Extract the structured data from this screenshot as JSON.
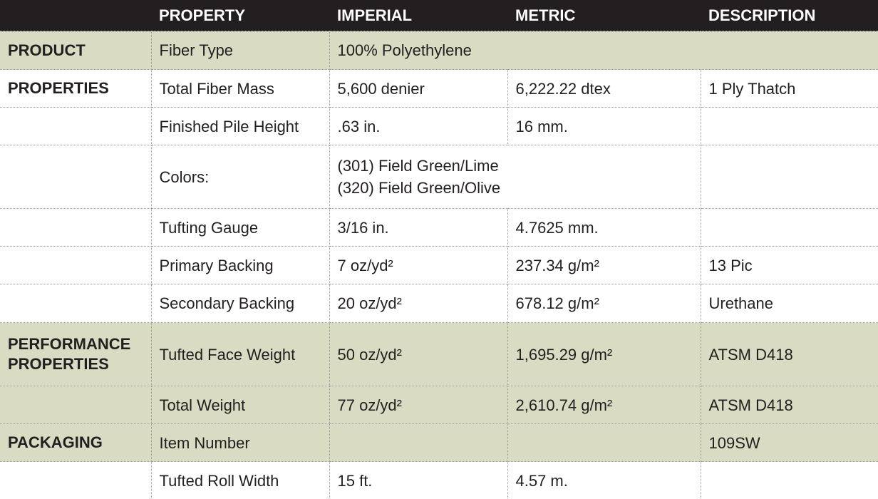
{
  "table": {
    "header": [
      "PROPERTY",
      "IMPERIAL",
      "METRIC",
      "DESCRIPTION"
    ],
    "rows": [
      {
        "section": "PRODUCT",
        "property": "Fiber Type",
        "imperial": "100% Polyethylene"
      },
      {
        "section": "PROPERTIES",
        "property": "Total Fiber Mass",
        "imperial": "5,600 denier",
        "metric": "6,222.22 dtex",
        "description": "1 Ply Thatch"
      },
      {
        "property": "Finished Pile Height",
        "imperial": ".63 in.",
        "metric": "16 mm."
      },
      {
        "property": "Colors:",
        "imperial": [
          "(301) Field Green/Lime",
          "(320) Field Green/Olive"
        ]
      },
      {
        "property": "Tufting Gauge",
        "imperial": "3/16 in.",
        "metric": "4.7625 mm."
      },
      {
        "property": "Primary Backing",
        "imperial": "7 oz/yd²",
        "metric": "237.34 g/m²",
        "description": "13 Pic"
      },
      {
        "property": "Secondary Backing",
        "imperial": "20 oz/yd²",
        "metric": "678.12 g/m²",
        "description": "Urethane"
      },
      {
        "section": "PERFORMANCE PROPERTIES",
        "property": "Tufted Face Weight",
        "imperial": "50 oz/yd²",
        "metric": "1,695.29 g/m²",
        "description": "ATSM D418"
      },
      {
        "property": "Total Weight",
        "imperial": "77 oz/yd²",
        "metric": "2,610.74 g/m²",
        "description": "ATSM D418"
      },
      {
        "section": "PACKAGING",
        "property": "Item Number",
        "description": "109SW"
      },
      {
        "property": "Tufted Roll Width",
        "imperial": "15 ft.",
        "metric": "4.57 m."
      }
    ]
  }
}
